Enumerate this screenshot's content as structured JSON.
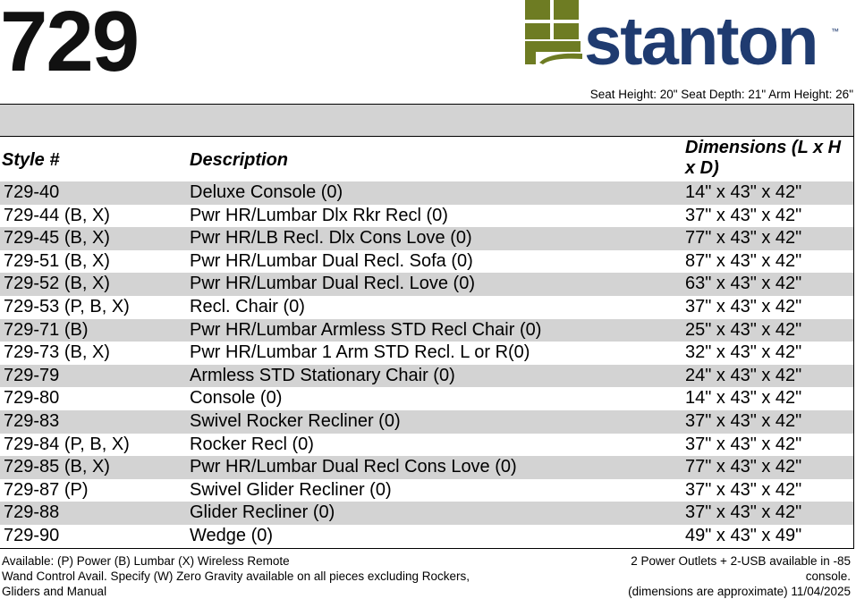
{
  "header": {
    "model": "729",
    "logo": {
      "name": "stanton",
      "mark": "™"
    },
    "specs": "Seat Height: 20\" Seat Depth: 21\" Arm Height: 26\""
  },
  "table": {
    "columns": [
      "Style #",
      "Description",
      "Dimensions (L x H x D)"
    ],
    "rows": [
      [
        "729-40",
        "Deluxe Console (0)",
        "14\" x 43\" x 42\""
      ],
      [
        "729-44 (B, X)",
        "Pwr HR/Lumbar Dlx Rkr Recl (0)",
        "37\" x 43\" x 42\""
      ],
      [
        "729-45 (B, X)",
        "Pwr HR/LB Recl. Dlx Cons Love (0)",
        "77\" x 43\" x 42\""
      ],
      [
        "729-51 (B, X)",
        "Pwr HR/Lumbar Dual Recl. Sofa (0)",
        "87\" x 43\" x 42\""
      ],
      [
        "729-52 (B, X)",
        "Pwr HR/Lumbar Dual Recl. Love (0)",
        "63\" x 43\" x 42\""
      ],
      [
        "729-53 (P, B, X)",
        "Recl. Chair (0)",
        "37\" x 43\" x 42\""
      ],
      [
        "729-71 (B)",
        "Pwr HR/Lumbar Armless STD Recl Chair (0)",
        "25\" x 43\" x 42\""
      ],
      [
        "729-73 (B, X)",
        "Pwr HR/Lumbar 1 Arm STD Recl. L or R(0)",
        "32\" x 43\" x 42\""
      ],
      [
        "729-79",
        "Armless STD Stationary Chair (0)",
        "24\" x 43\" x 42\""
      ],
      [
        "729-80",
        "Console (0)",
        "14\" x 43\" x 42\""
      ],
      [
        "729-83",
        "Swivel Rocker Recliner (0)",
        "37\" x 43\" x 42\""
      ],
      [
        "729-84 (P, B, X)",
        "Rocker Recl (0)",
        "37\" x 43\" x 42\""
      ],
      [
        "729-85 (B, X)",
        "Pwr HR/Lumbar Dual Recl Cons Love (0)",
        "77\" x 43\" x 42\""
      ],
      [
        "729-87 (P)",
        "Swivel Glider Recliner (0)",
        "37\" x 43\" x 42\""
      ],
      [
        "729-88",
        "Glider Recliner (0)",
        "37\" x 43\" x 42\""
      ],
      [
        "729-90",
        "Wedge (0)",
        "49\" x 43\" x 49\""
      ]
    ]
  },
  "footer": {
    "left": [
      "Available: (P) Power (B) Lumbar (X) Wireless Remote",
      "Wand Control Avail. Specify (W) Zero Gravity available on all pieces excluding Rockers,",
      "Gliders and Manual"
    ],
    "right": [
      "2 Power Outlets + 2-USB available in -85",
      "console.",
      "(dimensions are approximate) 11/04/2025"
    ]
  }
}
